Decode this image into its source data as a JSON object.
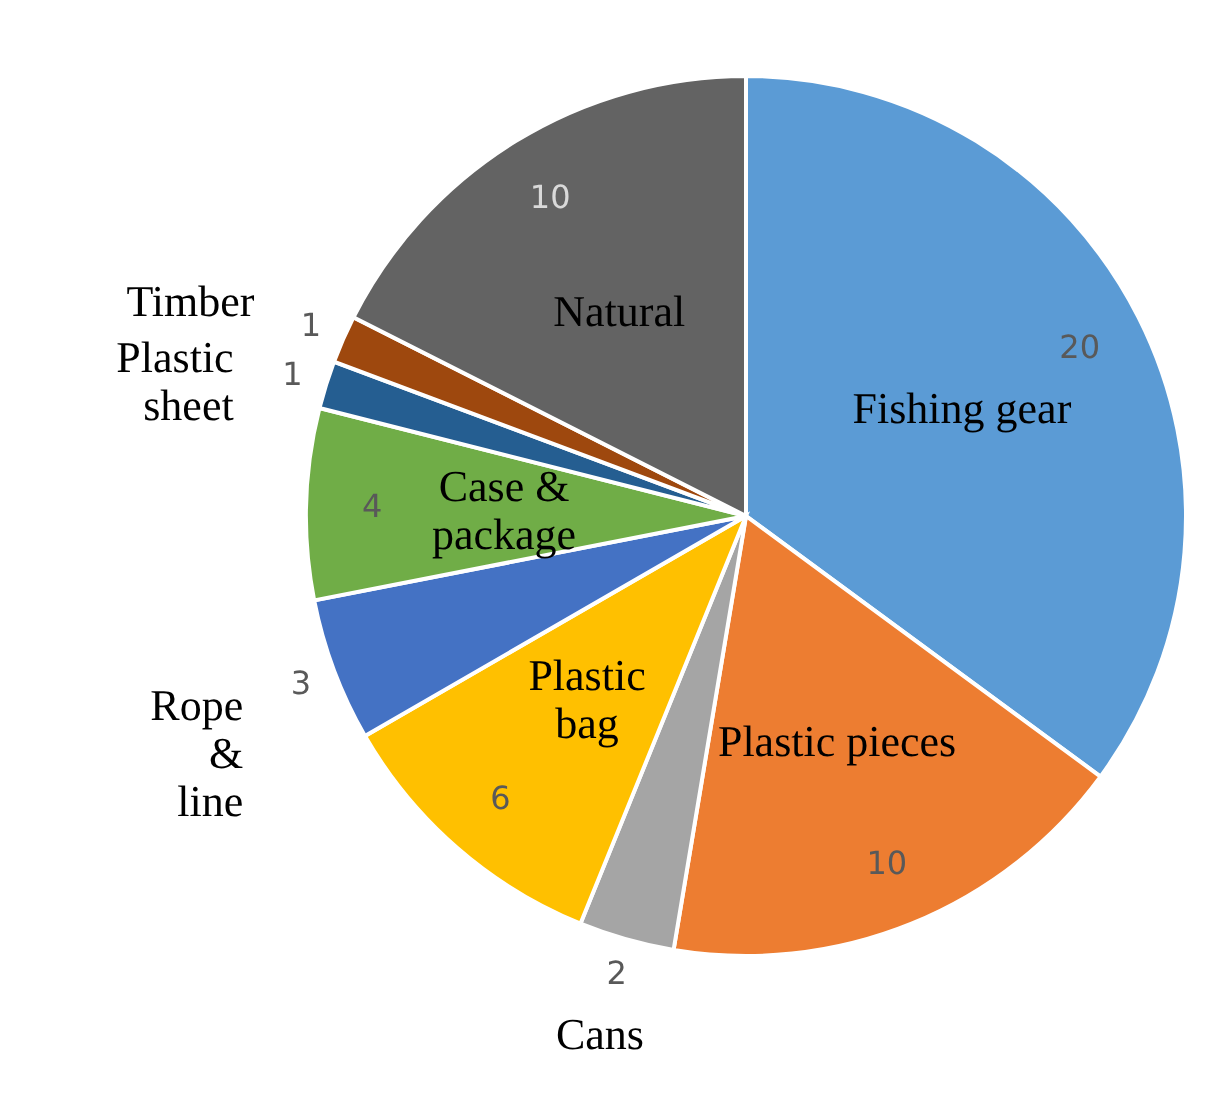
{
  "chart_data": {
    "type": "pie",
    "categories": [
      "Fishing gear",
      "Plastic pieces",
      "Cans",
      "Plastic bag",
      "Rope & line",
      "Case & package",
      "Plastic sheet",
      "Timber",
      "Natural"
    ],
    "values": [
      20,
      10,
      2,
      6,
      3,
      4,
      1,
      1,
      10
    ],
    "colors": [
      "#5b9bd5",
      "#ed7d31",
      "#a5a5a5",
      "#ffc000",
      "#4472c4",
      "#70ad47",
      "#255e91",
      "#9e480e",
      "#636363"
    ],
    "data_labels": true,
    "legend": false
  }
}
